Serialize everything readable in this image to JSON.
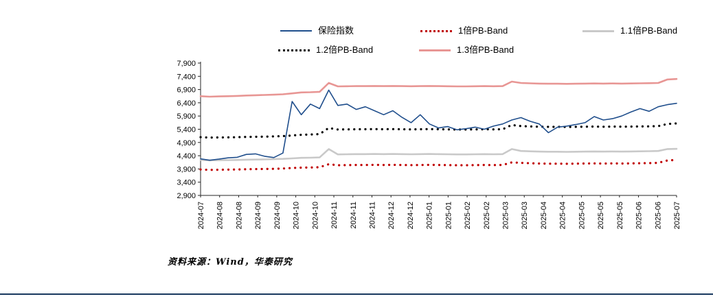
{
  "source_note": "资料来源：Wind，华泰研究",
  "chart_data": {
    "type": "line",
    "title": "",
    "xlabel": "",
    "ylabel": "",
    "grid": false,
    "legend_position": "top",
    "y_axis": {
      "min": 2900,
      "max": 7900,
      "step": 500,
      "tick_labels": [
        "7,900",
        "7,400",
        "6,900",
        "6,400",
        "5,900",
        "5,400",
        "4,900",
        "4,400",
        "3,900",
        "3,400",
        "2,900"
      ]
    },
    "x_tick_labels": [
      "2024-07",
      "2024-08",
      "2024-08",
      "2024-09",
      "2024-09",
      "2024-10",
      "2024-10",
      "2024-11",
      "2024-11",
      "2024-11",
      "2024-12",
      "2024-12",
      "2025-01",
      "2025-01",
      "2025-02",
      "2025-02",
      "2025-03",
      "2025-03",
      "2025-04",
      "2025-04",
      "2025-05",
      "2025-05",
      "2025-05",
      "2025-06",
      "2025-06",
      "2025-07"
    ],
    "series": [
      {
        "id": "insurance-index",
        "name": "保险指数",
        "color": "#1F4E8C",
        "style": "solid",
        "width": 1.6,
        "values": [
          4280,
          4230,
          4270,
          4320,
          4340,
          4450,
          4470,
          4380,
          4330,
          4500,
          6450,
          5950,
          6350,
          6180,
          6880,
          6300,
          6350,
          6150,
          6250,
          6100,
          5950,
          6100,
          5850,
          5650,
          5950,
          5600,
          5450,
          5500,
          5380,
          5420,
          5480,
          5400,
          5520,
          5600,
          5750,
          5840,
          5700,
          5600,
          5270,
          5480,
          5520,
          5580,
          5650,
          5880,
          5750,
          5800,
          5900,
          6050,
          6180,
          6080,
          6250,
          6330,
          6380
        ]
      },
      {
        "id": "pb-band-1x",
        "name": "1倍PB-Band",
        "color": "#C00000",
        "style": "dotted",
        "width": 3.2,
        "values": [
          3880,
          3865,
          3870,
          3875,
          3880,
          3890,
          3895,
          3900,
          3905,
          3915,
          3935,
          3950,
          3955,
          3965,
          4080,
          4040,
          4045,
          4050,
          4050,
          4055,
          4050,
          4055,
          4050,
          4045,
          4050,
          4055,
          4050,
          4045,
          4040,
          4040,
          4045,
          4050,
          4045,
          4050,
          4150,
          4130,
          4115,
          4105,
          4100,
          4100,
          4095,
          4100,
          4105,
          4110,
          4105,
          4110,
          4105,
          4110,
          4115,
          4120,
          4130,
          4220,
          4240
        ]
      },
      {
        "id": "pb-band-1-1x",
        "name": "1.1倍PB-Band",
        "color": "#C9C9C9",
        "style": "solid",
        "width": 2.6,
        "values": [
          4240,
          4225,
          4230,
          4235,
          4240,
          4250,
          4255,
          4260,
          4270,
          4280,
          4300,
          4320,
          4325,
          4335,
          4650,
          4450,
          4455,
          4460,
          4460,
          4465,
          4460,
          4465,
          4460,
          4455,
          4460,
          4465,
          4460,
          4455,
          4450,
          4450,
          4455,
          4460,
          4455,
          4460,
          4650,
          4580,
          4565,
          4555,
          4550,
          4550,
          4545,
          4550,
          4555,
          4560,
          4555,
          4560,
          4555,
          4560,
          4565,
          4570,
          4580,
          4650,
          4660
        ]
      },
      {
        "id": "pb-band-1-2x",
        "name": "1.2倍PB-Band",
        "color": "#000000",
        "style": "dotted",
        "width": 3.2,
        "values": [
          5100,
          5085,
          5090,
          5095,
          5100,
          5110,
          5115,
          5120,
          5130,
          5140,
          5165,
          5190,
          5200,
          5215,
          5450,
          5390,
          5395,
          5400,
          5400,
          5405,
          5400,
          5405,
          5400,
          5395,
          5400,
          5405,
          5400,
          5395,
          5390,
          5390,
          5395,
          5400,
          5395,
          5400,
          5560,
          5520,
          5505,
          5495,
          5490,
          5490,
          5485,
          5490,
          5495,
          5500,
          5495,
          5500,
          5495,
          5500,
          5505,
          5510,
          5520,
          5600,
          5620
        ]
      },
      {
        "id": "pb-band-1-3x",
        "name": "1.3倍PB-Band",
        "color": "#E89694",
        "style": "solid",
        "width": 2.6,
        "values": [
          6650,
          6630,
          6640,
          6650,
          6660,
          6675,
          6685,
          6695,
          6705,
          6720,
          6755,
          6790,
          6800,
          6815,
          7150,
          7020,
          7025,
          7030,
          7030,
          7035,
          7030,
          7035,
          7030,
          7025,
          7030,
          7035,
          7030,
          7025,
          7020,
          7020,
          7025,
          7030,
          7025,
          7030,
          7200,
          7150,
          7135,
          7125,
          7120,
          7120,
          7115,
          7120,
          7125,
          7130,
          7125,
          7130,
          7125,
          7130,
          7135,
          7140,
          7150,
          7280,
          7300
        ]
      }
    ]
  }
}
